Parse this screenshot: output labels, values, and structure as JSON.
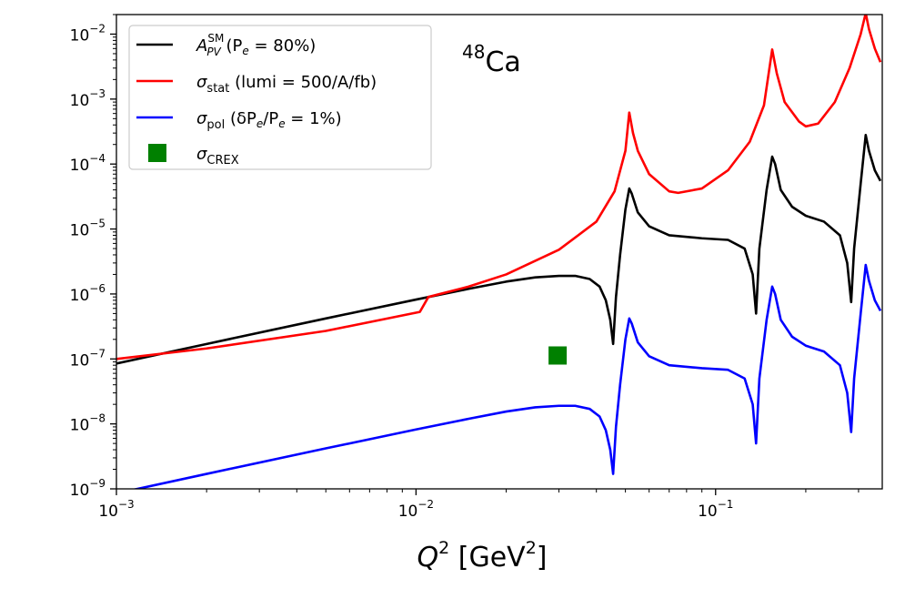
{
  "chart_data": {
    "type": "line",
    "xscale": "log",
    "yscale": "log",
    "xlim": [
      0.001,
      0.36
    ],
    "ylim": [
      1e-09,
      0.02
    ],
    "grid": false,
    "legend_position": "top-left",
    "xlabel": {
      "base": "Q",
      "exp": "2",
      "open": " [GeV",
      "exp2": "2",
      "close": "]"
    },
    "ylabel": "",
    "annotation": {
      "sup": "48",
      "text": "Ca"
    },
    "x_ticks": [
      {
        "value": 0.001,
        "base": "10",
        "exp": "−3"
      },
      {
        "value": 0.01,
        "base": "10",
        "exp": "−2"
      },
      {
        "value": 0.1,
        "base": "10",
        "exp": "−1"
      }
    ],
    "y_ticks": [
      {
        "value": 1e-09,
        "base": "10",
        "exp": "−9"
      },
      {
        "value": 1e-08,
        "base": "10",
        "exp": "−8"
      },
      {
        "value": 1e-07,
        "base": "10",
        "exp": "−7"
      },
      {
        "value": 1e-06,
        "base": "10",
        "exp": "−6"
      },
      {
        "value": 1e-05,
        "base": "10",
        "exp": "−5"
      },
      {
        "value": 0.0001,
        "base": "10",
        "exp": "−4"
      },
      {
        "value": 0.001,
        "base": "10",
        "exp": "−3"
      },
      {
        "value": 0.01,
        "base": "10",
        "exp": "−2"
      }
    ],
    "series": [
      {
        "name": "A_PV^SM (P_e = 80%)",
        "color": "#000000",
        "points": [
          [
            0.001,
            8.5e-08
          ],
          [
            0.002,
            1.7e-07
          ],
          [
            0.005,
            4.2e-07
          ],
          [
            0.01,
            8.2e-07
          ],
          [
            0.015,
            1.2e-06
          ],
          [
            0.02,
            1.55e-06
          ],
          [
            0.025,
            1.8e-06
          ],
          [
            0.03,
            1.9e-06
          ],
          [
            0.034,
            1.9e-06
          ],
          [
            0.038,
            1.7e-06
          ],
          [
            0.041,
            1.3e-06
          ],
          [
            0.043,
            8e-07
          ],
          [
            0.0445,
            4e-07
          ],
          [
            0.0455,
            1.7e-07
          ],
          [
            0.0465,
            9e-07
          ],
          [
            0.048,
            4e-06
          ],
          [
            0.05,
            2e-05
          ],
          [
            0.0515,
            4.2e-05
          ],
          [
            0.0525,
            3.5e-05
          ],
          [
            0.055,
            1.8e-05
          ],
          [
            0.06,
            1.1e-05
          ],
          [
            0.07,
            8e-06
          ],
          [
            0.09,
            7.2e-06
          ],
          [
            0.11,
            6.8e-06
          ],
          [
            0.125,
            5e-06
          ],
          [
            0.133,
            2e-06
          ],
          [
            0.1365,
            5e-07
          ],
          [
            0.14,
            5e-06
          ],
          [
            0.148,
            4e-05
          ],
          [
            0.1545,
            0.00013
          ],
          [
            0.158,
            0.0001
          ],
          [
            0.165,
            4e-05
          ],
          [
            0.18,
            2.2e-05
          ],
          [
            0.2,
            1.6e-05
          ],
          [
            0.23,
            1.3e-05
          ],
          [
            0.26,
            8e-06
          ],
          [
            0.275,
            3e-06
          ],
          [
            0.2835,
            7.5e-07
          ],
          [
            0.29,
            5e-06
          ],
          [
            0.305,
            5e-05
          ],
          [
            0.317,
            0.00028
          ],
          [
            0.325,
            0.00016
          ],
          [
            0.34,
            8e-05
          ],
          [
            0.355,
            5.5e-05
          ]
        ]
      },
      {
        "name": "σ_stat (lumi = 500/A/fb)",
        "color": "#ff0000",
        "points": [
          [
            0.001,
            1e-07
          ],
          [
            0.002,
            1.45e-07
          ],
          [
            0.005,
            2.7e-07
          ],
          [
            0.0103,
            5.3e-07
          ],
          [
            0.011,
            9e-07
          ],
          [
            0.015,
            1.3e-06
          ],
          [
            0.02,
            2e-06
          ],
          [
            0.03,
            4.8e-06
          ],
          [
            0.04,
            1.3e-05
          ],
          [
            0.046,
            3.8e-05
          ],
          [
            0.05,
            0.00016
          ],
          [
            0.0515,
            0.00062
          ],
          [
            0.053,
            0.0003
          ],
          [
            0.055,
            0.00016
          ],
          [
            0.06,
            7e-05
          ],
          [
            0.07,
            3.8e-05
          ],
          [
            0.075,
            3.6e-05
          ],
          [
            0.09,
            4.2e-05
          ],
          [
            0.11,
            8e-05
          ],
          [
            0.13,
            0.00022
          ],
          [
            0.145,
            0.0008
          ],
          [
            0.1545,
            0.0058
          ],
          [
            0.16,
            0.0025
          ],
          [
            0.17,
            0.0009
          ],
          [
            0.19,
            0.00045
          ],
          [
            0.2,
            0.00038
          ],
          [
            0.22,
            0.00042
          ],
          [
            0.25,
            0.0009
          ],
          [
            0.28,
            0.003
          ],
          [
            0.305,
            0.01
          ],
          [
            0.317,
            0.021
          ],
          [
            0.325,
            0.012
          ],
          [
            0.34,
            0.006
          ],
          [
            0.355,
            0.0037
          ]
        ]
      },
      {
        "name": "σ_pol (δP_e/P_e = 1%)",
        "color": "#0000ff",
        "points": [
          [
            0.001,
            8.5e-10
          ],
          [
            0.002,
            1.7e-09
          ],
          [
            0.005,
            4.2e-09
          ],
          [
            0.01,
            8.2e-09
          ],
          [
            0.015,
            1.2e-08
          ],
          [
            0.02,
            1.55e-08
          ],
          [
            0.025,
            1.8e-08
          ],
          [
            0.03,
            1.9e-08
          ],
          [
            0.034,
            1.9e-08
          ],
          [
            0.038,
            1.7e-08
          ],
          [
            0.041,
            1.3e-08
          ],
          [
            0.043,
            8e-09
          ],
          [
            0.0445,
            4e-09
          ],
          [
            0.0455,
            1.7e-09
          ],
          [
            0.0465,
            9e-09
          ],
          [
            0.048,
            4e-08
          ],
          [
            0.05,
            2e-07
          ],
          [
            0.0515,
            4.2e-07
          ],
          [
            0.0525,
            3.5e-07
          ],
          [
            0.055,
            1.8e-07
          ],
          [
            0.06,
            1.1e-07
          ],
          [
            0.07,
            8e-08
          ],
          [
            0.09,
            7.2e-08
          ],
          [
            0.11,
            6.8e-08
          ],
          [
            0.125,
            5e-08
          ],
          [
            0.133,
            2e-08
          ],
          [
            0.1365,
            5e-09
          ],
          [
            0.14,
            5e-08
          ],
          [
            0.148,
            4e-07
          ],
          [
            0.1545,
            1.3e-06
          ],
          [
            0.158,
            1e-06
          ],
          [
            0.165,
            4e-07
          ],
          [
            0.18,
            2.2e-07
          ],
          [
            0.2,
            1.6e-07
          ],
          [
            0.23,
            1.3e-07
          ],
          [
            0.26,
            8e-08
          ],
          [
            0.275,
            3e-08
          ],
          [
            0.2835,
            7.5e-09
          ],
          [
            0.29,
            5e-08
          ],
          [
            0.305,
            5e-07
          ],
          [
            0.317,
            2.8e-06
          ],
          [
            0.325,
            1.6e-06
          ],
          [
            0.34,
            8e-07
          ],
          [
            0.355,
            5.5e-07
          ]
        ]
      }
    ],
    "markers": [
      {
        "name": "σ_CREX",
        "color": "#008000",
        "shape": "square",
        "x": 0.0297,
        "y": 1.13e-07
      }
    ],
    "legend": [
      {
        "kind": "line",
        "color": "#000000",
        "main": "A",
        "sup": "SM",
        "sub": "PV",
        "rest": " (P",
        "rest_sub": "e",
        "rest_tail": " = 80%)"
      },
      {
        "kind": "line",
        "color": "#ff0000",
        "main": "σ",
        "sub": "stat",
        "rest": " (lumi = 500/A/fb)"
      },
      {
        "kind": "line",
        "color": "#0000ff",
        "main": "σ",
        "sub": "pol",
        "rest": " (δP",
        "rest_sub": "e",
        "rest_tail": "/P",
        "rest_sub2": "e",
        "rest_tail2": " = 1%)"
      },
      {
        "kind": "square",
        "color": "#008000",
        "main": "σ",
        "sub": "CREX"
      }
    ]
  }
}
